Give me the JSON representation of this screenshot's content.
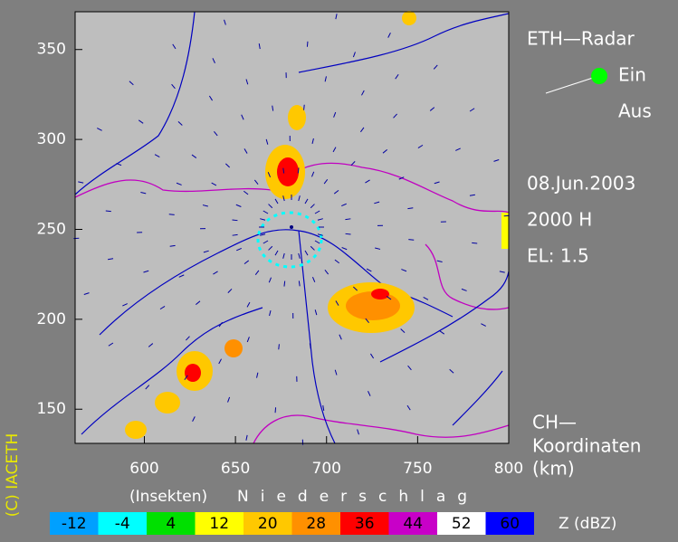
{
  "title": "ETH—Radar",
  "switch": {
    "on": "Ein",
    "off": "Aus"
  },
  "info": {
    "date": "08.Jun.2003",
    "time": "2000 H",
    "elevation": "EL: 1.5"
  },
  "coordinates": {
    "line1": "CH—",
    "line2": "Koordinaten",
    "line3": "(km)"
  },
  "copyright": "(C) IACETH",
  "map": {
    "xlim": [
      562,
      800
    ],
    "ylim": [
      131,
      371
    ],
    "xticks": [
      600,
      650,
      700,
      750,
      800
    ],
    "yticks": [
      150,
      200,
      250,
      300,
      350
    ]
  },
  "legend": {
    "insects": "(Insekten)",
    "precipitation": "Niederschlag",
    "unit": "Z  (dBZ)",
    "levels": [
      {
        "value": -12,
        "color": "#00a0ff"
      },
      {
        "value": -4,
        "color": "#00ffff"
      },
      {
        "value": 4,
        "color": "#00e000"
      },
      {
        "value": 12,
        "color": "#ffff00"
      },
      {
        "value": 20,
        "color": "#ffc800"
      },
      {
        "value": 28,
        "color": "#ff9000"
      },
      {
        "value": 36,
        "color": "#ff0000"
      },
      {
        "value": 44,
        "color": "#c800c8"
      },
      {
        "value": 52,
        "color": "#ffffff"
      },
      {
        "value": 60,
        "color": "#0000ff"
      }
    ]
  }
}
